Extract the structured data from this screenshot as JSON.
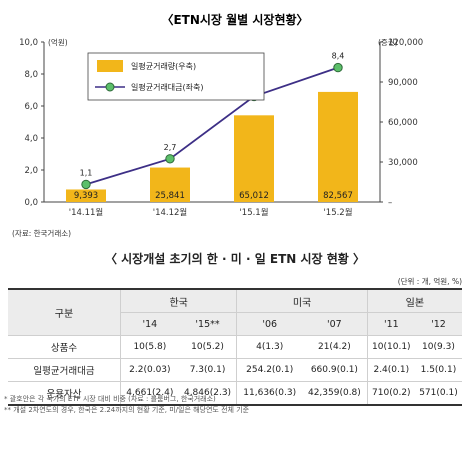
{
  "chart_data": {
    "type": "bar+line",
    "title": "〈ETN시장 월별 시장현황〉",
    "categories": [
      "'14.11월",
      "'14.12월",
      "'15.1월",
      "'15.2월"
    ],
    "series": [
      {
        "name": "일평균거래량(우축)",
        "kind": "bar",
        "axis": "right",
        "values": [
          9393,
          25841,
          65012,
          82567
        ],
        "labels": [
          "9,393",
          "25,841",
          "65,012",
          "82,567"
        ],
        "color": "#f2b61a"
      },
      {
        "name": "일평균거래대금(좌축)",
        "kind": "line",
        "axis": "left",
        "values": [
          1.1,
          2.7,
          6.6,
          8.4
        ],
        "labels": [
          "1,1",
          "2,7",
          "6,6",
          "8,4"
        ],
        "color": "#3d2f86",
        "marker": "#5cbf6a"
      }
    ],
    "left_axis": {
      "unit": "(억원)",
      "ylim": [
        0,
        10
      ],
      "ticks": [
        "0,0",
        "2,0",
        "4,0",
        "6,0",
        "8,0",
        "10,0"
      ]
    },
    "right_axis": {
      "unit": "(증권)",
      "ylim": [
        0,
        120000
      ],
      "ticks": [
        "–",
        "30,000",
        "60,000",
        "90,000",
        "120,000"
      ]
    },
    "source": "(자료: 한국거래소)",
    "legend_position": "top-left"
  },
  "table": {
    "title": "〈 시장개설 초기의 한 · 미 · 일 ETN 시장 현황 〉",
    "unit_note": "(단위 : 개, 억원, %)",
    "corner_label": "구분",
    "groups": [
      "한국",
      "미국",
      "일본"
    ],
    "years": [
      "'14",
      "'15**",
      "'06",
      "'07",
      "'11",
      "'12"
    ],
    "rows": [
      {
        "label": "상품수",
        "cells": [
          "10(5.8)",
          "10(5.2)",
          "4(1.3)",
          "21(4.2)",
          "10(10.1)",
          "10(9.3)"
        ]
      },
      {
        "label": "일평균거래대금",
        "cells": [
          "2.2(0.03)",
          "7.3(0.1)",
          "254.2(0.1)",
          "660.9(0.1)",
          "2.4(0.1)",
          "1.5(0.1)"
        ]
      },
      {
        "label": "운용자산",
        "cells": [
          "4,661(2.4)",
          "4,846(2.3)",
          "11,636(0.3)",
          "42,359(0.8)",
          "710(0.2)",
          "571(0.1)"
        ]
      }
    ],
    "footnotes": [
      "* 괄호안은 각 국가의 ETF 시장 대비 비중 (자료 : 블룸버그, 한국거래소)",
      "** 개설 2차연도의 경우, 한국은 2.24까지의 현황 기준, 미/일은 해당연도 전체 기준"
    ]
  }
}
